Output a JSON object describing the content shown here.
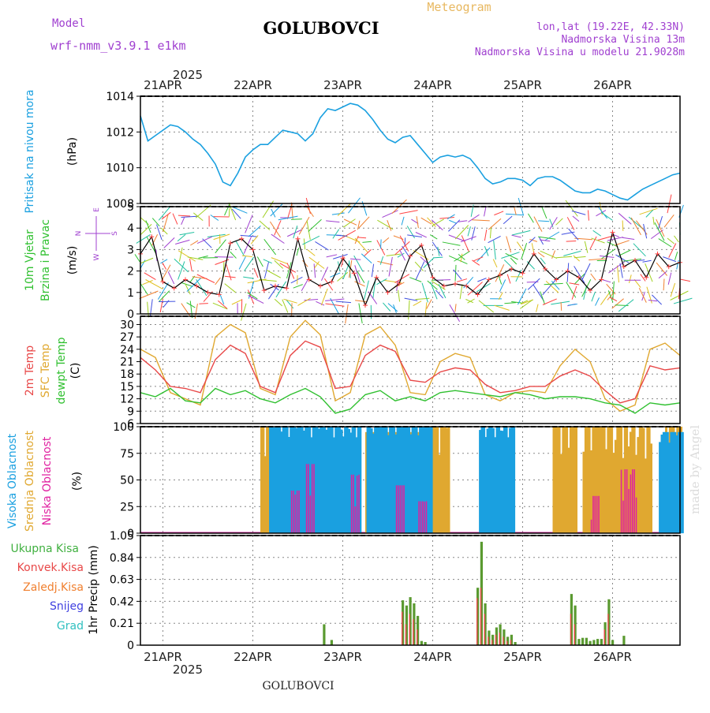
{
  "header": {
    "model_label": "Model",
    "model_name": "wrf-nmm_v3.9.1 e1km",
    "station": "GOLUBOVCI",
    "product": "Meteogram",
    "lonlat": "lon,lat (19.22E, 42.33N)",
    "altitude": "Nadmorska Visina 13m",
    "model_altitude": "Nadmorska Visina u modelu 21.9028m",
    "year": "2025",
    "footer_station": "GOLUBOVCI",
    "watermark": "made by Angel"
  },
  "days": [
    "21APR",
    "22APR",
    "23APR",
    "24APR",
    "25APR",
    "26APR"
  ],
  "colors": {
    "pressure": "#1aa0e0",
    "temp2m": "#e84848",
    "sfc": "#e0a830",
    "dew": "#30c030",
    "high_cloud": "#1aa0e0",
    "mid_cloud": "#e0a830",
    "low_cloud": "#e020a0",
    "total_precip": "#40b040",
    "conv_precip": "#e84848"
  },
  "chart_data": [
    {
      "type": "line",
      "name": "pressure",
      "ylabel_main": "Pritisak na nivou mora",
      "ylabel_unit": "(hPa)",
      "yticks": [
        1008,
        1010,
        1012,
        1014
      ],
      "ylim": [
        1008,
        1014
      ],
      "series": [
        {
          "x": [
            0,
            2,
            4,
            6,
            8,
            10,
            12,
            14,
            16,
            18,
            20,
            22,
            24,
            26,
            28,
            30,
            32,
            34,
            36,
            38,
            40,
            42,
            44,
            46,
            48,
            50,
            52,
            54,
            56,
            58,
            60,
            62,
            64,
            66,
            68,
            70,
            72,
            74,
            76,
            78,
            80,
            82,
            84,
            86,
            88,
            90,
            92,
            94,
            96,
            98,
            100,
            102,
            104,
            106,
            108,
            110,
            112,
            114,
            116,
            118,
            120,
            122,
            124,
            126,
            128,
            130,
            132,
            134,
            136,
            138,
            140,
            142,
            144
          ],
          "values": [
            1012.9,
            1011.5,
            1011.8,
            1012.1,
            1012.4,
            1012.3,
            1012.0,
            1011.6,
            1011.3,
            1010.8,
            1010.2,
            1009.2,
            1009.0,
            1009.7,
            1010.6,
            1011.0,
            1011.3,
            1011.3,
            1011.7,
            1012.1,
            1012.0,
            1011.9,
            1011.5,
            1011.9,
            1012.8,
            1013.3,
            1013.2,
            1013.4,
            1013.6,
            1013.5,
            1013.2,
            1012.7,
            1012.1,
            1011.6,
            1011.4,
            1011.7,
            1011.8,
            1011.3,
            1010.8,
            1010.3,
            1010.6,
            1010.7,
            1010.6,
            1010.7,
            1010.5,
            1010.0,
            1009.4,
            1009.1,
            1009.2,
            1009.4,
            1009.4,
            1009.3,
            1009.0,
            1009.4,
            1009.5,
            1009.5,
            1009.3,
            1009.0,
            1008.7,
            1008.6,
            1008.6,
            1008.8,
            1008.7,
            1008.5,
            1008.3,
            1008.2,
            1008.5,
            1008.8,
            1009.0,
            1009.2,
            1009.4,
            1009.6,
            1009.7
          ]
        }
      ]
    },
    {
      "type": "line",
      "name": "wind",
      "ylabel_main": "10m Vjetar",
      "ylabel_sub": "Brzina i Pravac",
      "ylabel_unit": "(m/s)",
      "compass": {
        "w": "W",
        "e": "E",
        "n": "N",
        "s": "S"
      },
      "yticks": [
        0,
        1,
        2,
        3,
        4,
        5
      ],
      "ylim": [
        0,
        5
      ],
      "series": [
        {
          "x": [
            0,
            3,
            6,
            9,
            12,
            15,
            18,
            21,
            24,
            27,
            30,
            33,
            36,
            39,
            42,
            45,
            48,
            51,
            54,
            57,
            60,
            63,
            66,
            69,
            72,
            75,
            78,
            81,
            84,
            87,
            90,
            93,
            96,
            99,
            102,
            105,
            108,
            111,
            114,
            117,
            120,
            123,
            126,
            129,
            132,
            135,
            138,
            141,
            144
          ],
          "values": [
            2.8,
            3.6,
            1.5,
            1.2,
            1.6,
            1.3,
            1.0,
            0.9,
            3.3,
            3.5,
            3.0,
            1.1,
            1.3,
            1.2,
            3.5,
            1.6,
            1.3,
            1.5,
            2.6,
            1.9,
            0.4,
            1.7,
            1.0,
            1.4,
            2.7,
            3.2,
            1.7,
            1.3,
            1.4,
            1.3,
            0.9,
            1.6,
            1.8,
            2.1,
            1.9,
            2.8,
            2.1,
            1.6,
            2.0,
            1.7,
            1.1,
            1.6,
            3.8,
            2.2,
            2.5,
            1.7,
            2.8,
            2.2,
            2.4
          ]
        }
      ]
    },
    {
      "type": "line",
      "name": "temperature",
      "ylabel_lines": [
        "2m Temp",
        "SFC Temp",
        "dewpt Temp"
      ],
      "ylabel_unit": "(C)",
      "yticks": [
        6,
        9,
        12,
        15,
        18,
        21,
        24,
        27,
        30
      ],
      "ylim": [
        6,
        32
      ],
      "x": [
        0,
        4,
        8,
        12,
        16,
        20,
        24,
        28,
        32,
        36,
        40,
        44,
        48,
        52,
        56,
        60,
        64,
        68,
        72,
        76,
        80,
        84,
        88,
        92,
        96,
        100,
        104,
        108,
        112,
        116,
        120,
        124,
        128,
        132,
        136,
        140,
        144
      ],
      "series": [
        {
          "name": "2m Temp",
          "values": [
            22.0,
            19.0,
            15.0,
            14.5,
            13.5,
            21.5,
            25.0,
            23.0,
            15.0,
            13.5,
            22.5,
            26.0,
            24.5,
            14.5,
            15.0,
            22.5,
            25.0,
            23.5,
            16.5,
            16.0,
            18.5,
            19.5,
            19.0,
            15.5,
            13.5,
            14.0,
            15.0,
            15.0,
            17.5,
            19.0,
            17.5,
            14.0,
            11.0,
            12.0,
            20.0,
            19.0,
            19.5
          ]
        },
        {
          "name": "SFC Temp",
          "values": [
            24.0,
            22.0,
            13.5,
            12.0,
            10.5,
            27.0,
            30.0,
            28.0,
            14.5,
            13.0,
            27.0,
            31.0,
            27.5,
            11.5,
            13.5,
            27.5,
            29.5,
            25.0,
            13.5,
            13.0,
            21.0,
            23.0,
            22.0,
            13.0,
            11.5,
            13.5,
            14.0,
            13.5,
            20.0,
            24.0,
            21.0,
            12.0,
            9.0,
            10.5,
            24.0,
            25.5,
            22.5
          ]
        },
        {
          "name": "dewpt Temp",
          "values": [
            13.5,
            12.5,
            14.5,
            11.5,
            11.0,
            14.5,
            13.0,
            14.0,
            12.0,
            11.0,
            13.0,
            14.5,
            12.5,
            8.5,
            9.5,
            13.0,
            14.0,
            11.5,
            12.5,
            11.5,
            13.5,
            14.0,
            13.5,
            13.0,
            12.5,
            13.5,
            13.0,
            12.0,
            12.5,
            12.5,
            12.0,
            11.0,
            10.5,
            8.5,
            11.0,
            10.5,
            11.0
          ]
        }
      ]
    },
    {
      "type": "bar",
      "name": "cloud",
      "ylabel_lines": [
        "Visoka Oblacnost",
        "Srednja Oblacnost",
        "Niska Oblacnost"
      ],
      "ylabel_unit": "(%)",
      "yticks": [
        0,
        25,
        50,
        75,
        100
      ],
      "ylim": [
        0,
        100
      ],
      "series": [
        {
          "name": "Visoka Oblacnost",
          "periods": [
            [
              34,
              58,
              100
            ],
            [
              60,
              77,
              100
            ],
            [
              90,
              99,
              100
            ],
            [
              138,
              144,
              95
            ]
          ]
        },
        {
          "name": "Srednja Oblacnost",
          "periods": [
            [
              32,
              34,
              100
            ],
            [
              34,
              58,
              80
            ],
            [
              60,
              76,
              95
            ],
            [
              78,
              82,
              100
            ],
            [
              110,
              116,
              100
            ],
            [
              118,
              136,
              100
            ],
            [
              140,
              144,
              100
            ]
          ]
        },
        {
          "name": "Niska Oblacnost",
          "periods": [
            [
              40,
              42,
              40
            ],
            [
              44,
              46,
              65
            ],
            [
              56,
              58,
              55
            ],
            [
              68,
              70,
              45
            ],
            [
              74,
              76,
              30
            ],
            [
              120,
              122,
              35
            ],
            [
              128,
              132,
              60
            ]
          ]
        }
      ]
    },
    {
      "type": "bar",
      "name": "precipitation",
      "legend": [
        "Ukupna Kisa",
        "Konvek.Kisa",
        "Zaledj.Kisa",
        "Snijeg",
        "Grad"
      ],
      "ylabel": "1hr Precip (mm)",
      "yticks": [
        0,
        0.21,
        0.42,
        0.63,
        0.84,
        1.05
      ],
      "ylim": [
        0,
        1.05
      ],
      "x": [
        49,
        51,
        70,
        71,
        72,
        73,
        74,
        75,
        76,
        90,
        91,
        92,
        93,
        94,
        95,
        96,
        97,
        98,
        99,
        100,
        115,
        116,
        117,
        118,
        119,
        120,
        121,
        122,
        123,
        124,
        125,
        126,
        129
      ],
      "series": [
        {
          "name": "Ukupna Kisa",
          "values": [
            0.2,
            0.05,
            0.43,
            0.38,
            0.46,
            0.4,
            0.28,
            0.04,
            0.03,
            0.55,
            0.99,
            0.4,
            0.14,
            0.1,
            0.17,
            0.2,
            0.15,
            0.08,
            0.1,
            0.03,
            0.49,
            0.38,
            0.06,
            0.07,
            0.07,
            0.04,
            0.05,
            0.06,
            0.06,
            0.22,
            0.44,
            0.05,
            0.09
          ]
        },
        {
          "name": "Konvek.Kisa",
          "values": [
            0.0,
            0.0,
            0.32,
            0.2,
            0.3,
            0.25,
            0.15,
            0.0,
            0.0,
            0.45,
            0.55,
            0.3,
            0.08,
            0.05,
            0.1,
            0.12,
            0.08,
            0.04,
            0.05,
            0.0,
            0.3,
            0.2,
            0.0,
            0.0,
            0.0,
            0.0,
            0.0,
            0.0,
            0.0,
            0.15,
            0.3,
            0.0,
            0.0
          ]
        }
      ]
    }
  ]
}
